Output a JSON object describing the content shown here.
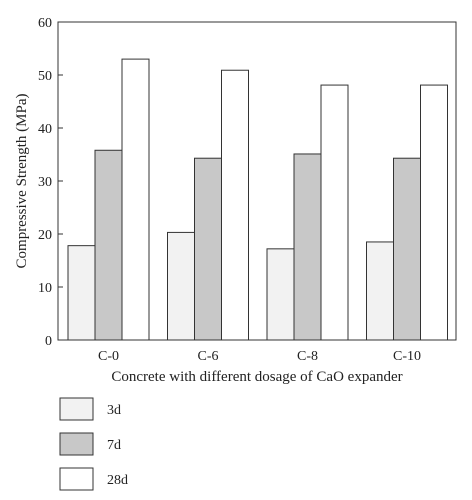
{
  "chart_data": {
    "type": "bar",
    "title": "",
    "xlabel": "Concrete with different dosage of CaO expander",
    "ylabel": "Compressive Strength (MPa)",
    "ylim": [
      0,
      60
    ],
    "yticks": [
      0,
      10,
      20,
      30,
      40,
      50,
      60
    ],
    "categories": [
      "C-0",
      "C-6",
      "C-8",
      "C-10"
    ],
    "series": [
      {
        "name": "3d",
        "values": [
          17.8,
          20.3,
          17.2,
          18.5
        ],
        "color": "#f2f2f2"
      },
      {
        "name": "7d",
        "values": [
          35.8,
          34.3,
          35.1,
          34.3
        ],
        "color": "#c8c8c8"
      },
      {
        "name": "28d",
        "values": [
          53.0,
          50.9,
          48.1,
          48.1
        ],
        "color": "#ffffff"
      }
    ],
    "grid": false,
    "legend_placement": "bottom-left"
  },
  "colors": {
    "bar_stroke": "#333333",
    "axis": "#333333",
    "text": "#222222"
  }
}
